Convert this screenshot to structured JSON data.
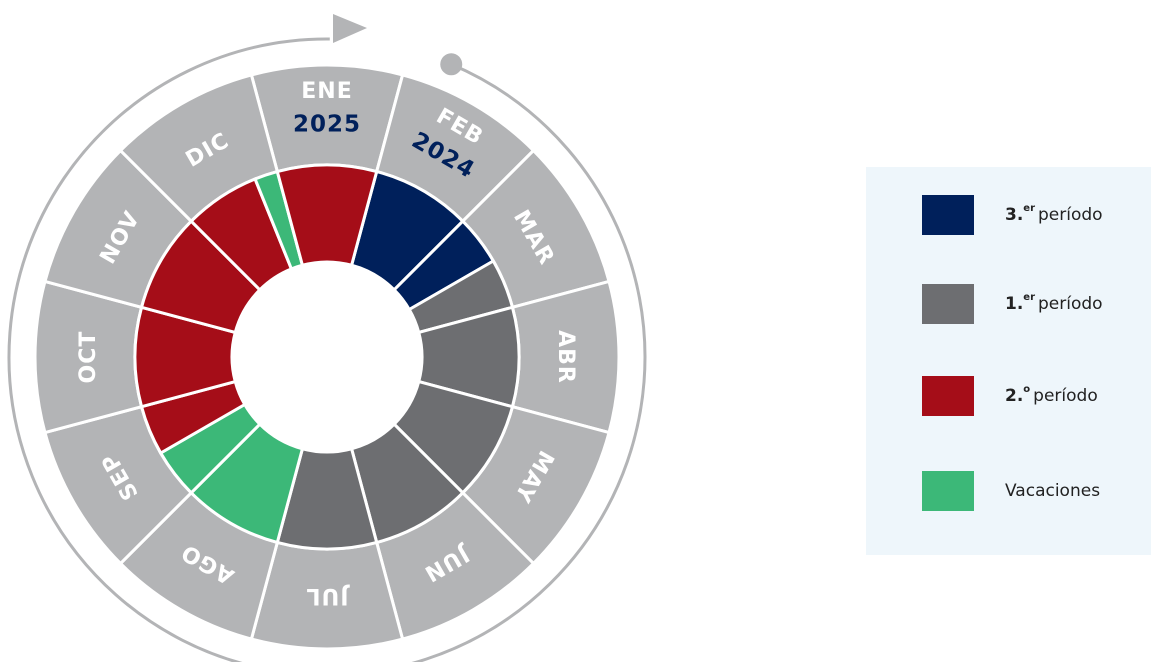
{
  "months": [
    {
      "label": "ENE",
      "year": "2025"
    },
    {
      "label": "FEB",
      "year": "2024"
    },
    {
      "label": "MAR"
    },
    {
      "label": "ABR"
    },
    {
      "label": "MAY"
    },
    {
      "label": "JUN"
    },
    {
      "label": "JUL"
    },
    {
      "label": "AGO"
    },
    {
      "label": "SEP"
    },
    {
      "label": "OCT"
    },
    {
      "label": "NOV"
    },
    {
      "label": "DIC"
    }
  ],
  "legend": [
    {
      "number": "3.",
      "sup": "er",
      "text": "período",
      "color": "#00205b"
    },
    {
      "number": "1.",
      "sup": "er",
      "text": "período",
      "color": "#6d6e71"
    },
    {
      "number": "2.",
      "sup": "o",
      "text": "período",
      "color": "#a50d18"
    },
    {
      "text": "Vacaciones",
      "color": "#3cb878"
    }
  ]
}
